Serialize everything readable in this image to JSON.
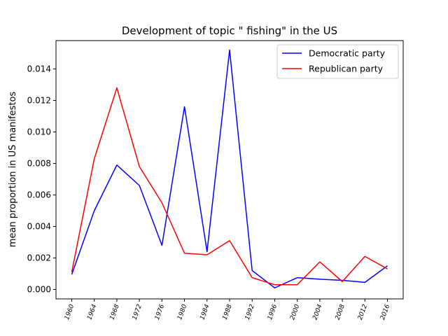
{
  "chart_data": {
    "type": "line",
    "title": "Development of topic \" fishing\" in the US",
    "xlabel": "",
    "ylabel": "mean proportion in US manifestos",
    "x": [
      "1960",
      "1964",
      "1968",
      "1972",
      "1976",
      "1980",
      "1984",
      "1988",
      "1992",
      "1996",
      "2000",
      "2004",
      "2008",
      "2012",
      "2016"
    ],
    "ylim": [
      -0.0006,
      0.0158
    ],
    "yticks": [
      "0.000",
      "0.002",
      "0.004",
      "0.006",
      "0.008",
      "0.010",
      "0.012",
      "0.014"
    ],
    "legend_position": "top-right",
    "grid": false,
    "series": [
      {
        "name": "Democratic party",
        "color": "#0000ff",
        "values": [
          0.00095,
          0.005,
          0.0079,
          0.0066,
          0.0028,
          0.0116,
          0.0024,
          0.0152,
          0.0012,
          0.0001,
          0.00075,
          0.00065,
          0.00058,
          0.00045,
          0.0015
        ]
      },
      {
        "name": "Republican party",
        "color": "#ff0000",
        "values": [
          0.0011,
          0.0083,
          0.0128,
          0.0078,
          0.0055,
          0.0023,
          0.0022,
          0.0031,
          0.00075,
          0.0003,
          0.0003,
          0.00175,
          0.0005,
          0.0021,
          0.0013
        ]
      }
    ]
  }
}
